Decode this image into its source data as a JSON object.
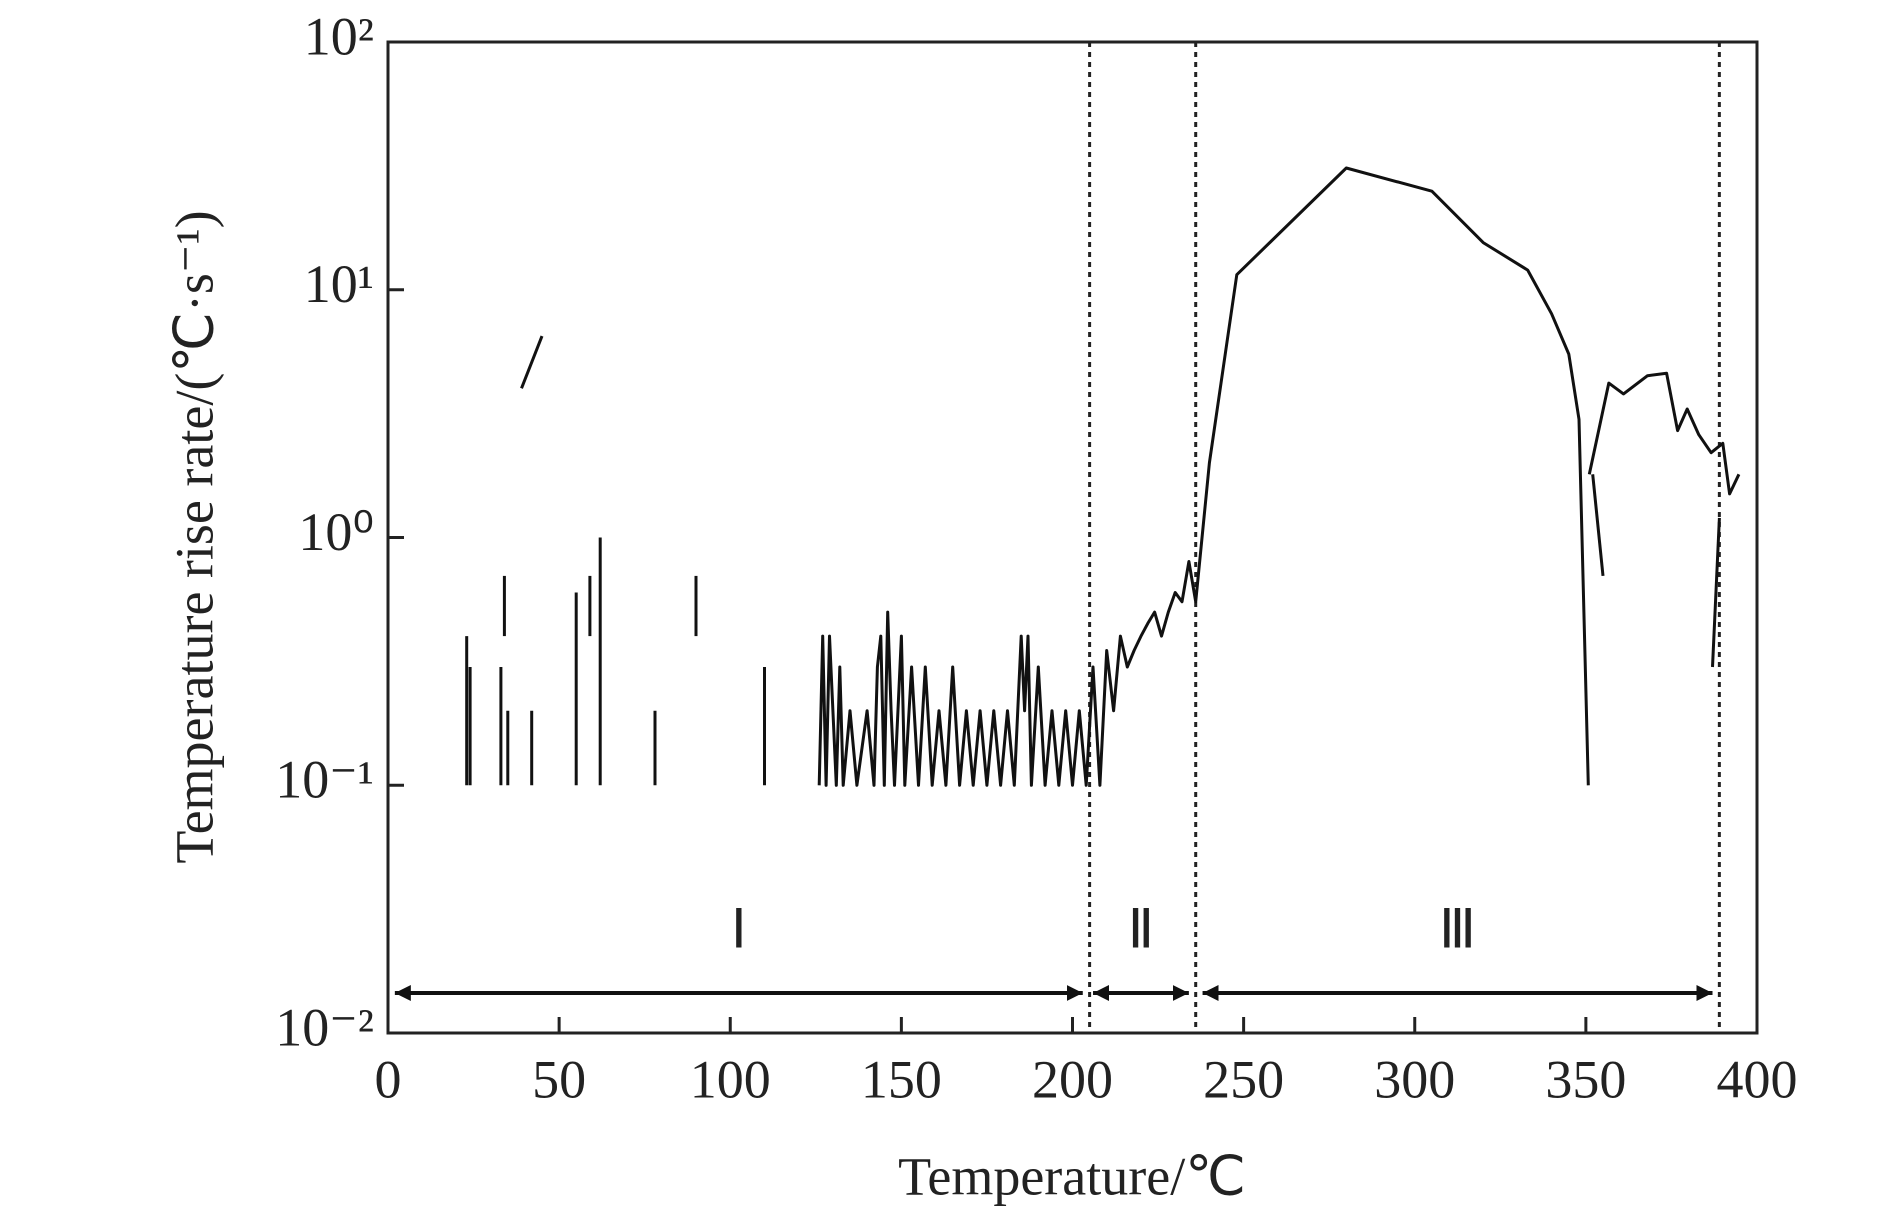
{
  "chart_data": {
    "type": "line",
    "xlabel": "Temperature/℃",
    "ylabel": "Temperature rise rate/(℃·s⁻¹)",
    "xlim": [
      0,
      400
    ],
    "xticks": [
      0,
      50,
      100,
      150,
      200,
      250,
      300,
      350,
      400
    ],
    "ylim": [
      0.01,
      100
    ],
    "log_y": true,
    "yticks": [
      {
        "value": 0.01,
        "label": "10⁻²"
      },
      {
        "value": 0.1,
        "label": "10⁻¹"
      },
      {
        "value": 1,
        "label": "10⁰"
      },
      {
        "value": 10,
        "label": "10¹"
      },
      {
        "value": 100,
        "label": "10²"
      }
    ],
    "color": "#111111",
    "x": [
      23,
      23,
      null,
      24,
      24,
      null,
      33,
      33,
      null,
      34,
      34,
      null,
      35,
      35,
      null,
      39,
      45,
      null,
      42,
      42,
      null,
      55,
      55,
      null,
      59,
      59,
      null,
      62,
      62,
      null,
      78,
      78,
      null,
      90,
      90,
      null,
      110,
      110,
      null,
      126,
      127,
      128,
      129,
      130,
      131,
      132,
      133,
      135,
      137,
      140,
      142,
      143,
      144,
      145,
      146,
      147,
      148,
      150,
      151,
      153,
      155,
      157,
      159,
      161,
      163,
      165,
      167,
      169,
      171,
      173,
      175,
      177,
      179,
      181,
      183,
      185,
      186,
      187,
      188,
      190,
      192,
      194,
      196,
      198,
      200,
      202,
      204,
      206,
      208,
      210,
      212,
      214,
      216,
      218,
      220,
      222,
      224,
      226,
      228,
      230,
      232,
      234,
      236,
      240,
      248,
      280,
      305,
      320,
      333,
      340,
      345,
      348,
      350.7,
      null,
      351,
      356.7,
      361,
      368,
      373.6,
      376.8,
      379.6,
      383,
      386.6,
      390,
      392,
      394.7,
      null,
      352,
      355,
      null,
      387,
      389
    ],
    "values": [
      0.1,
      0.4,
      null,
      0.1,
      0.3,
      null,
      0.1,
      0.3,
      null,
      0.4,
      0.7,
      null,
      0.1,
      0.2,
      null,
      4,
      6.5,
      null,
      0.1,
      0.2,
      null,
      0.1,
      0.6,
      null,
      0.4,
      0.7,
      null,
      0.1,
      1,
      null,
      0.1,
      0.2,
      null,
      0.4,
      0.7,
      null,
      0.1,
      0.3,
      null,
      0.1,
      0.4,
      0.1,
      0.4,
      0.2,
      0.1,
      0.3,
      0.1,
      0.2,
      0.1,
      0.2,
      0.1,
      0.3,
      0.4,
      0.1,
      0.5,
      0.2,
      0.1,
      0.4,
      0.1,
      0.3,
      0.1,
      0.3,
      0.1,
      0.2,
      0.1,
      0.3,
      0.1,
      0.2,
      0.1,
      0.2,
      0.1,
      0.2,
      0.1,
      0.2,
      0.1,
      0.4,
      0.2,
      0.4,
      0.1,
      0.3,
      0.1,
      0.2,
      0.1,
      0.2,
      0.1,
      0.2,
      0.1,
      0.3,
      0.1,
      0.35,
      0.2,
      0.4,
      0.3,
      0.35,
      0.4,
      0.45,
      0.5,
      0.4,
      0.5,
      0.6,
      0.55,
      0.8,
      0.55,
      2,
      11.5,
      31,
      25,
      15.5,
      12,
      8,
      5.5,
      3,
      0.1,
      null,
      1.8,
      4.2,
      3.8,
      4.5,
      4.6,
      2.7,
      3.3,
      2.6,
      2.2,
      2.4,
      1.5,
      1.8,
      null,
      1.8,
      0.7,
      null,
      0.3,
      1.2
    ],
    "vlines": [
      205,
      236,
      389
    ],
    "regions": [
      {
        "label": "Ⅰ",
        "from": 2,
        "to": 203
      },
      {
        "label": "Ⅱ",
        "from": 206,
        "to": 234
      },
      {
        "label": "Ⅲ",
        "from": 238,
        "to": 387
      }
    ]
  }
}
